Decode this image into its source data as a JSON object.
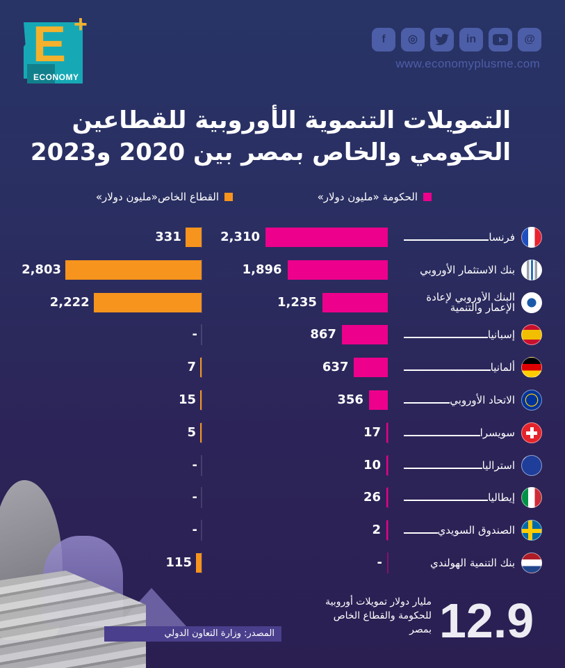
{
  "brand": {
    "logo_letter": "E",
    "logo_plus": "+",
    "logo_text": "ECONOMY",
    "website": "www.economyplusme.com",
    "social": [
      {
        "name": "facebook-icon",
        "glyph": "f"
      },
      {
        "name": "instagram-icon",
        "glyph": "◎"
      },
      {
        "name": "twitter-icon",
        "glyph": "🐦"
      },
      {
        "name": "linkedin-icon",
        "glyph": "in"
      },
      {
        "name": "youtube-icon",
        "glyph": "▶"
      },
      {
        "name": "threads-icon",
        "glyph": "@"
      }
    ]
  },
  "colors": {
    "government": "#ec008c",
    "private": "#f7941d",
    "background": "#2a2f62"
  },
  "chart_data": {
    "type": "bar",
    "orientation": "horizontal",
    "title": "التمويلات التنموية الأوروبية للقطاعين الحكومي والخاص بمصر بين 2020 و2023",
    "title_line1": "التمويلات التنموية الأوروبية للقطاعين",
    "title_line2": "الحكومي والخاص بمصر بين 2020 و2023",
    "unit": "مليون دولار",
    "legend_placement": "top",
    "categories": [
      "فرنسا",
      "بنك الاستثمار الأوروبي",
      "البنك الأوروبي لإعادة الإعمار والتنمية",
      "إسبانيا",
      "ألمانيا",
      "الاتحاد الأوروبي",
      "سويسرا",
      "استراليا",
      "إيطاليا",
      "الصندوق السويدي",
      "بنك التنمية الهولندي"
    ],
    "series": [
      {
        "name": "الحكومة «مليون دولار»",
        "values": [
          2310,
          1896,
          1235,
          867,
          637,
          356,
          17,
          10,
          26,
          2,
          null
        ],
        "labels": [
          "2,310",
          "1,896",
          "1,235",
          "867",
          "637",
          "356",
          "17",
          "10",
          "26",
          "2",
          "-"
        ]
      },
      {
        "name": "القطاع الخاص«مليون دولار»",
        "values": [
          331,
          2803,
          2222,
          null,
          7,
          15,
          5,
          null,
          null,
          null,
          115
        ],
        "labels": [
          "331",
          "2,803",
          "2,222",
          "-",
          "7",
          "15",
          "5",
          "-",
          "-",
          "-",
          "115"
        ]
      }
    ]
  },
  "rows_meta": [
    {
      "flag": "france-flag-icon",
      "stretched": true
    },
    {
      "flag": "eib-logo-icon",
      "stretched": false
    },
    {
      "flag": "ebrd-logo-icon",
      "stretched": false
    },
    {
      "flag": "spain-flag-icon",
      "stretched": true
    },
    {
      "flag": "germany-flag-icon",
      "stretched": true
    },
    {
      "flag": "eu-flag-icon",
      "stretched": true
    },
    {
      "flag": "switzerland-flag-icon",
      "stretched": true
    },
    {
      "flag": "australia-flag-icon",
      "stretched": true
    },
    {
      "flag": "italy-flag-icon",
      "stretched": true
    },
    {
      "flag": "sweden-flag-icon",
      "stretched": true
    },
    {
      "flag": "netherlands-flag-icon",
      "stretched": false
    }
  ],
  "summary": {
    "total": "12.9",
    "description_line1": "مليار دولار تمويلات أوروبية",
    "description_line2": "للحكومة والقطاع الخاص",
    "description_line3": "بمصر"
  },
  "source": "المصدر: وزارة التعاون الدولي"
}
